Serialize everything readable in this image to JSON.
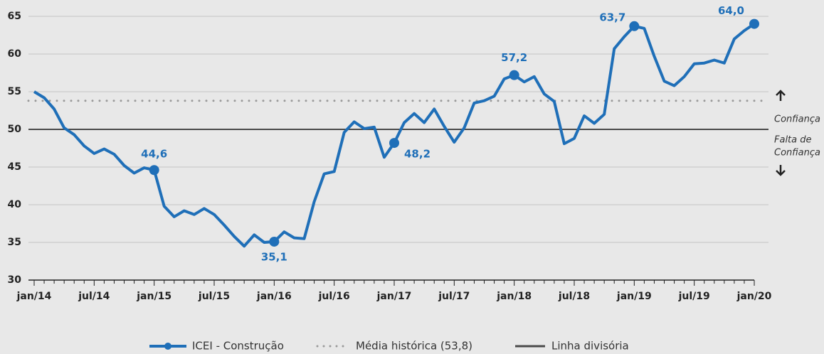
{
  "chart_data": {
    "type": "line",
    "categories": [
      "jan/14",
      null,
      null,
      null,
      null,
      null,
      "jul/14",
      null,
      null,
      null,
      null,
      null,
      "jan/15",
      null,
      null,
      null,
      null,
      null,
      "jul/15",
      null,
      null,
      null,
      null,
      null,
      "jan/16",
      null,
      null,
      null,
      null,
      null,
      "jul/16",
      null,
      null,
      null,
      null,
      null,
      "jan/17",
      null,
      null,
      null,
      null,
      null,
      "jul/17",
      null,
      null,
      null,
      null,
      null,
      "jan/18",
      null,
      null,
      null,
      null,
      null,
      "jul/18",
      null,
      null,
      null,
      null,
      null,
      "jan/19",
      null,
      null,
      null,
      null,
      null,
      "jul/19",
      null,
      null,
      null,
      null,
      null,
      "jan/20"
    ],
    "series": [
      {
        "name": "ICEI - Construção",
        "color": "#1f6fb8",
        "values": [
          55.0,
          54.2,
          52.7,
          50.2,
          49.3,
          47.8,
          46.8,
          47.4,
          46.7,
          45.2,
          44.2,
          44.9,
          44.6,
          39.8,
          38.4,
          39.2,
          38.7,
          39.5,
          38.7,
          37.3,
          35.8,
          34.5,
          36.0,
          35.0,
          35.1,
          36.4,
          35.6,
          35.5,
          40.4,
          44.1,
          44.4,
          49.6,
          51.0,
          50.1,
          50.3,
          46.3,
          48.2,
          50.9,
          52.1,
          50.9,
          52.7,
          50.4,
          48.3,
          50.2,
          53.5,
          53.8,
          54.4,
          56.7,
          57.2,
          56.3,
          57.0,
          54.7,
          53.7,
          48.1,
          48.8,
          51.8,
          50.8,
          52.0,
          60.7,
          62.3,
          63.7,
          63.4,
          59.7,
          56.4,
          55.8,
          57.0,
          58.7,
          58.8,
          59.2,
          58.8,
          62.0,
          63.1,
          64.0
        ],
        "value_labels": [
          null,
          null,
          null,
          null,
          null,
          null,
          null,
          null,
          null,
          null,
          null,
          null,
          "44,6",
          null,
          null,
          null,
          null,
          null,
          null,
          null,
          null,
          null,
          null,
          null,
          "35,1",
          null,
          null,
          null,
          null,
          null,
          null,
          null,
          null,
          null,
          null,
          null,
          "48,2",
          null,
          null,
          null,
          null,
          null,
          null,
          null,
          null,
          null,
          null,
          null,
          "57,2",
          null,
          null,
          null,
          null,
          null,
          null,
          null,
          null,
          null,
          null,
          null,
          "63,7",
          null,
          null,
          null,
          null,
          null,
          null,
          null,
          null,
          null,
          null,
          null,
          "64,0"
        ]
      }
    ],
    "reference_lines": [
      {
        "name": "Média histórica (53,8)",
        "value": 53.8,
        "color": "#9a9a9a",
        "style": "dotted"
      },
      {
        "name": "Linha divisória",
        "value": 50,
        "color": "#4a4a4a",
        "style": "solid"
      }
    ],
    "annotations": [
      "Confiança",
      "Falta de",
      "Confiança"
    ],
    "ylim": [
      30,
      65
    ],
    "yticks": [
      30,
      35,
      40,
      45,
      50,
      55,
      60,
      65
    ],
    "grid": true
  }
}
